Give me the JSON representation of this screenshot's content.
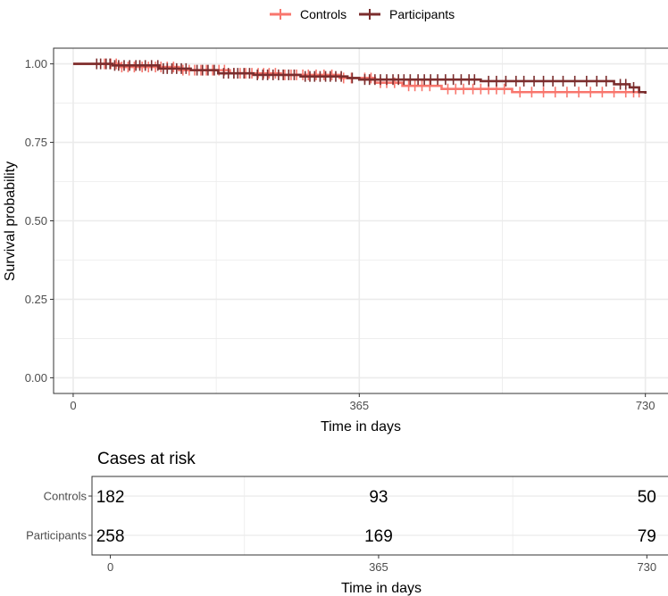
{
  "colors": {
    "controls": "#F8766D",
    "participants": "#7B2D2D",
    "grid": "#EBEBEB",
    "panel_border": "#333333"
  },
  "chart_data": [
    {
      "type": "line",
      "subtype": "kaplan-meier",
      "title": "",
      "xlabel": "Time in days",
      "ylabel": "Survival probability",
      "xlim": [
        -25,
        760
      ],
      "ylim": [
        -0.05,
        1.05
      ],
      "x_ticks": [
        0,
        365,
        730
      ],
      "x_tick_labels": [
        "0",
        "365",
        "730"
      ],
      "y_ticks": [
        0,
        0.25,
        0.5,
        0.75,
        1.0
      ],
      "y_tick_labels": [
        "0.00",
        "0.25",
        "0.50",
        "0.75",
        "1.00"
      ],
      "legend": {
        "position": "top",
        "entries": [
          "Controls",
          "Participants"
        ]
      },
      "grid": true,
      "series": [
        {
          "name": "Controls",
          "steps": [
            [
              0,
              1.0
            ],
            [
              60,
              0.99
            ],
            [
              135,
              0.98
            ],
            [
              200,
              0.97
            ],
            [
              265,
              0.965
            ],
            [
              340,
              0.955
            ],
            [
              385,
              0.94
            ],
            [
              420,
              0.93
            ],
            [
              470,
              0.92
            ],
            [
              560,
              0.91
            ],
            [
              700,
              0.91
            ],
            [
              730,
              0.905
            ]
          ],
          "censors": [
            40,
            48,
            55,
            62,
            70,
            78,
            88,
            96,
            105,
            112,
            120,
            128,
            140,
            148,
            155,
            163,
            170,
            178,
            186,
            193,
            205,
            213,
            220,
            228,
            236,
            243,
            250,
            258,
            270,
            278,
            285,
            293,
            300,
            310,
            320,
            330,
            345,
            355,
            372,
            380,
            392,
            400,
            410,
            428,
            436,
            445,
            455,
            478,
            488,
            498,
            510,
            520,
            530,
            540,
            550,
            570,
            585,
            600,
            615,
            630,
            645,
            660,
            675,
            690,
            705,
            715,
            722
          ]
        },
        {
          "name": "Participants",
          "steps": [
            [
              0,
              1.0
            ],
            [
              50,
              0.995
            ],
            [
              110,
              0.985
            ],
            [
              150,
              0.98
            ],
            [
              185,
              0.97
            ],
            [
              230,
              0.965
            ],
            [
              290,
              0.96
            ],
            [
              350,
              0.955
            ],
            [
              365,
              0.95
            ],
            [
              520,
              0.945
            ],
            [
              690,
              0.935
            ],
            [
              710,
              0.925
            ],
            [
              722,
              0.91
            ],
            [
              730,
              0.905
            ]
          ],
          "censors": [
            30,
            35,
            42,
            47,
            53,
            58,
            65,
            72,
            80,
            85,
            92,
            100,
            108,
            115,
            120,
            126,
            132,
            138,
            144,
            158,
            165,
            172,
            180,
            192,
            198,
            205,
            210,
            218,
            225,
            235,
            242,
            248,
            255,
            262,
            268,
            275,
            282,
            296,
            302,
            308,
            315,
            322,
            328,
            335,
            342,
            356,
            372,
            378,
            385,
            392,
            400,
            408,
            415,
            422,
            430,
            440,
            448,
            456,
            465,
            475,
            485,
            495,
            505,
            512,
            530,
            540,
            552,
            565,
            575,
            588,
            600,
            612,
            625,
            640,
            655,
            668,
            680,
            698,
            705,
            715
          ]
        }
      ]
    },
    {
      "type": "table",
      "title": "Cases at risk",
      "xlabel": "Time in days",
      "xlim": [
        -25,
        760
      ],
      "x_ticks": [
        0,
        365,
        730
      ],
      "x_tick_labels": [
        "0",
        "365",
        "730"
      ],
      "rows": [
        {
          "name": "Controls",
          "values": [
            182,
            93,
            50
          ]
        },
        {
          "name": "Participants",
          "values": [
            258,
            169,
            79
          ]
        }
      ]
    }
  ]
}
